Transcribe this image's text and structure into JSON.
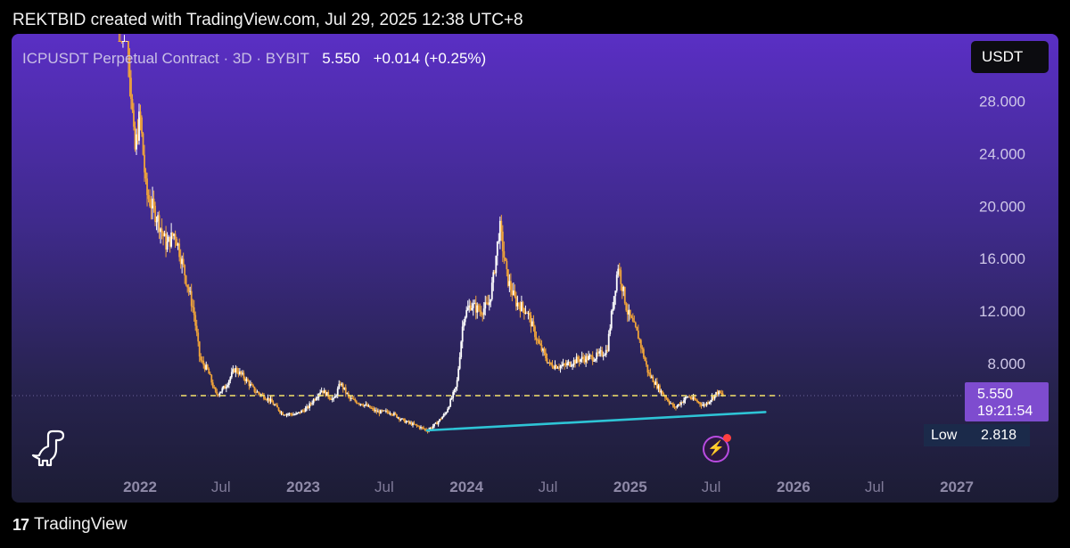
{
  "attribution": "REKTBID created with TradingView.com, Jul 29, 2025 12:38 UTC+8",
  "header": {
    "symbol": "ICPUSDT Perpetual Contract · 3D · BYBIT",
    "price": "5.550",
    "change": "+0.014 (+0.25%)"
  },
  "currency_button": "USDT",
  "last_price_tag": {
    "price": "5.550",
    "countdown": "19:21:54"
  },
  "low_tag": {
    "label": "Low",
    "value": "2.818"
  },
  "footer": {
    "logo": "17",
    "brand": "TradingView"
  },
  "colors": {
    "candle_up": "#ffffff",
    "candle_down": "#f0a43a",
    "support_line": "#2ec4d6",
    "price_dashed_line": "#f5e36b",
    "price_tag_bg": "#7e4ccf",
    "low_tag_bg": "#1b2a4a"
  },
  "icons": {
    "dino": "dino-icon",
    "bolt": "bolt-icon"
  },
  "chart_data": {
    "type": "candlestick",
    "x_axis": [
      "2022",
      "Jul",
      "2023",
      "Jul",
      "2024",
      "Jul",
      "2025",
      "Jul",
      "2026",
      "Jul",
      "2027"
    ],
    "x_axis_dates": [
      "2022-01-01",
      "2022-07-01",
      "2023-01-01",
      "2023-07-01",
      "2024-01-01",
      "2024-07-01",
      "2025-01-01",
      "2025-07-01",
      "2026-01-01",
      "2026-07-01",
      "2027-01-01"
    ],
    "y_axis": [
      "28.000",
      "24.000",
      "20.000",
      "16.000",
      "12.000",
      "8.000"
    ],
    "y_ticks": [
      28,
      24,
      20,
      16,
      12,
      8
    ],
    "price_path": [
      [
        "2021-11-15",
        35
      ],
      [
        "2021-12-05",
        33
      ],
      [
        "2021-12-20",
        24
      ],
      [
        "2022-01-01",
        27
      ],
      [
        "2022-01-15",
        21
      ],
      [
        "2022-02-10",
        19
      ],
      [
        "2022-03-01",
        17
      ],
      [
        "2022-03-20",
        18
      ],
      [
        "2022-04-10",
        15
      ],
      [
        "2022-05-01",
        12
      ],
      [
        "2022-05-15",
        8.3
      ],
      [
        "2022-06-01",
        7.5
      ],
      [
        "2022-06-20",
        5.6
      ],
      [
        "2022-07-10",
        6.2
      ],
      [
        "2022-08-01",
        7.6
      ],
      [
        "2022-08-20",
        7.0
      ],
      [
        "2022-09-15",
        5.9
      ],
      [
        "2022-10-15",
        5.3
      ],
      [
        "2022-11-15",
        4.2
      ],
      [
        "2022-12-15",
        4.1
      ],
      [
        "2023-01-10",
        4.6
      ],
      [
        "2023-02-10",
        6.0
      ],
      [
        "2023-03-10",
        5.2
      ],
      [
        "2023-03-25",
        6.5
      ],
      [
        "2023-04-15",
        5.3
      ],
      [
        "2023-05-15",
        4.9
      ],
      [
        "2023-06-15",
        4.3
      ],
      [
        "2023-07-15",
        4.3
      ],
      [
        "2023-08-15",
        3.6
      ],
      [
        "2023-09-15",
        3.2
      ],
      [
        "2023-10-05",
        2.9
      ],
      [
        "2023-10-25",
        3.4
      ],
      [
        "2023-11-15",
        4.2
      ],
      [
        "2023-12-10",
        6.3
      ],
      [
        "2023-12-25",
        11.5
      ],
      [
        "2024-01-10",
        12.5
      ],
      [
        "2024-02-01",
        12.0
      ],
      [
        "2024-02-20",
        12.5
      ],
      [
        "2024-03-01",
        14.5
      ],
      [
        "2024-03-15",
        18.5
      ],
      [
        "2024-04-01",
        14.5
      ],
      [
        "2024-04-20",
        12.7
      ],
      [
        "2024-05-15",
        12.0
      ],
      [
        "2024-06-10",
        9.5
      ],
      [
        "2024-07-05",
        7.9
      ],
      [
        "2024-08-05",
        7.8
      ],
      [
        "2024-09-05",
        8.3
      ],
      [
        "2024-10-15",
        8.5
      ],
      [
        "2024-11-10",
        9.0
      ],
      [
        "2024-11-25",
        13.0
      ],
      [
        "2024-12-05",
        15.5
      ],
      [
        "2024-12-25",
        12.0
      ],
      [
        "2025-01-20",
        10.0
      ],
      [
        "2025-02-10",
        7.3
      ],
      [
        "2025-03-10",
        5.9
      ],
      [
        "2025-04-10",
        4.6
      ],
      [
        "2025-05-10",
        5.5
      ],
      [
        "2025-06-15",
        4.8
      ],
      [
        "2025-07-15",
        5.8
      ],
      [
        "2025-07-29",
        5.55
      ]
    ],
    "horizontal_level": 5.55,
    "support_trendline": [
      [
        "2023-10-05",
        2.9
      ],
      [
        "2025-10-30",
        4.3
      ]
    ],
    "last_price": 5.55,
    "low": 2.818
  }
}
